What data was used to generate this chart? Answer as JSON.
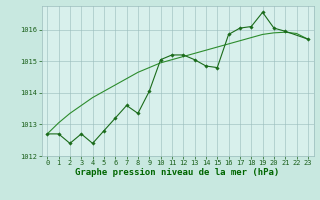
{
  "x": [
    0,
    1,
    2,
    3,
    4,
    5,
    6,
    7,
    8,
    9,
    10,
    11,
    12,
    13,
    14,
    15,
    16,
    17,
    18,
    19,
    20,
    21,
    22,
    23
  ],
  "y_main": [
    1012.7,
    1012.7,
    1012.4,
    1012.7,
    1012.4,
    1012.8,
    1013.2,
    1013.6,
    1013.35,
    1014.05,
    1015.05,
    1015.2,
    1015.2,
    1015.05,
    1014.85,
    1014.8,
    1015.85,
    1016.05,
    1016.1,
    1016.55,
    1016.05,
    1015.95,
    null,
    1015.7
  ],
  "y_trend": [
    1012.7,
    1013.05,
    1013.35,
    1013.6,
    1013.85,
    1014.05,
    1014.25,
    1014.45,
    1014.65,
    1014.8,
    1014.95,
    1015.05,
    1015.15,
    1015.25,
    1015.35,
    1015.45,
    1015.55,
    1015.65,
    1015.75,
    1015.85,
    1015.9,
    1015.92,
    1015.88,
    1015.7
  ],
  "ylim": [
    1012.0,
    1016.75
  ],
  "yticks": [
    1012,
    1013,
    1014,
    1015,
    1016
  ],
  "xticks": [
    0,
    1,
    2,
    3,
    4,
    5,
    6,
    7,
    8,
    9,
    10,
    11,
    12,
    13,
    14,
    15,
    16,
    17,
    18,
    19,
    20,
    21,
    22,
    23
  ],
  "line_color": "#1a6b1a",
  "trend_color": "#2d8c2d",
  "bg_color": "#c8e8e0",
  "grid_color": "#99bbbb",
  "axis_bg": "#d8f0ec",
  "xlabel": "Graphe pression niveau de la mer (hPa)",
  "marker": "D",
  "marker_size": 1.8,
  "linewidth": 0.8,
  "xlabel_fontsize": 6.5,
  "tick_fontsize": 5.0,
  "xlabel_color": "#1a5f1a",
  "tick_color": "#1a5f1a",
  "label_bottom_color": "#006600"
}
